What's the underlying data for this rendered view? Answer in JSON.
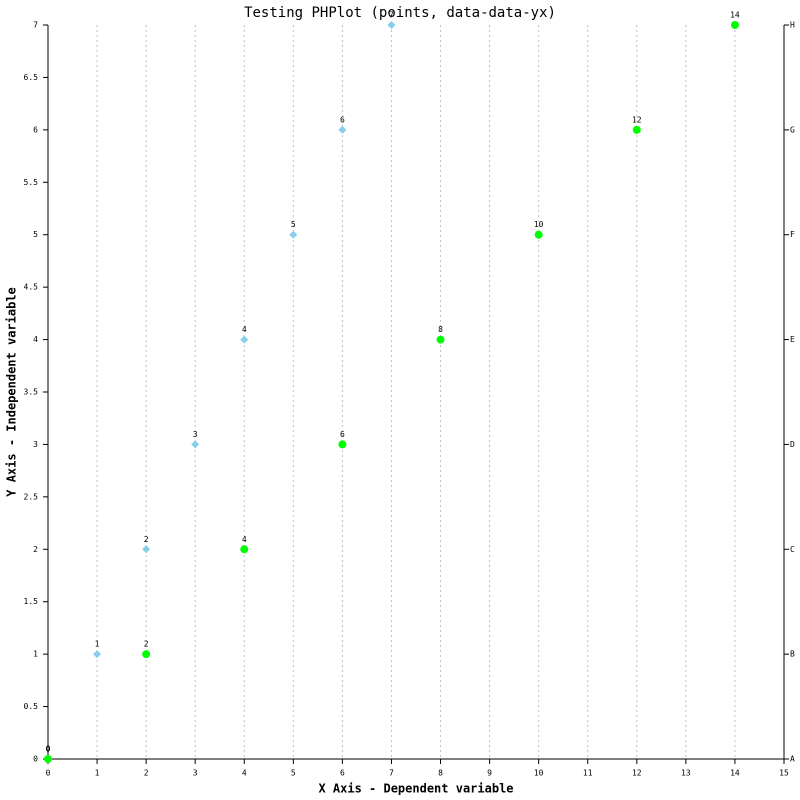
{
  "chart_data": {
    "type": "scatter",
    "title": "Testing PHPlot (points, data-data-yx)",
    "x_label": "X Axis - Dependent variable",
    "y_label": "Y Axis - Independent variable",
    "y": [
      0,
      1,
      2,
      3,
      4,
      5,
      6,
      7
    ],
    "row_labels": [
      "A",
      "B",
      "C",
      "D",
      "E",
      "F",
      "G",
      "H"
    ],
    "series": [
      {
        "color": "#87ceeb",
        "marker": "diamond",
        "x": [
          0,
          1,
          2,
          3,
          4,
          5,
          6,
          7
        ]
      },
      {
        "color": "#00ff00",
        "marker": "circle",
        "x": [
          0,
          2,
          4,
          6,
          8,
          10,
          12,
          14
        ]
      }
    ],
    "xlim": [
      0,
      15
    ],
    "xticks": [
      0,
      1,
      2,
      3,
      4,
      5,
      6,
      7,
      8,
      9,
      10,
      11,
      12,
      13,
      14,
      15
    ],
    "ylim": [
      0,
      7
    ],
    "yticks": [
      0,
      0.5,
      1,
      1.5,
      2,
      2.5,
      3,
      3.5,
      4,
      4.5,
      5,
      5.5,
      6,
      6.5,
      7
    ],
    "grid": "x"
  }
}
